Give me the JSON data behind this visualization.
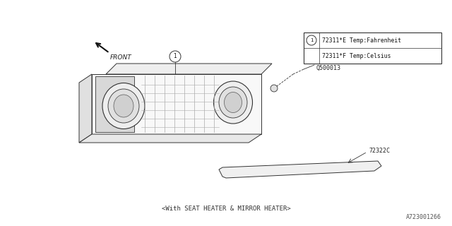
{
  "bg_color": "#ffffff",
  "diagram_id": "A723001266",
  "bottom_text": "<With SEAT HEATER & MIRROR HEATER>",
  "front_label": "FRONT",
  "legend_line1": "72311*E Temp:Fahrenheit",
  "legend_line2": "72311*F Temp:Celsius",
  "label_q500013": "Q500013",
  "label_72322c": "72322C"
}
